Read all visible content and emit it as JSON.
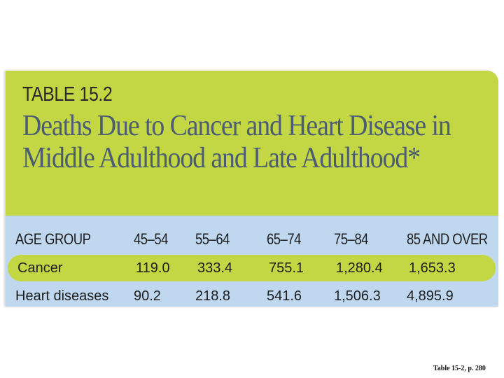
{
  "table": {
    "label": "TABLE 15.2",
    "title": "Deaths Due to Cancer and Heart Disease in Middle Adulthood and Late Adulthood*",
    "columns": [
      "AGE GROUP",
      "45–54",
      "55–64",
      "65–74",
      "75–84",
      "85 AND OVER"
    ],
    "rows": [
      {
        "label": "Cancer",
        "values": [
          "119.0",
          "333.4",
          "755.1",
          "1,280.4",
          "1,653.3"
        ]
      },
      {
        "label": "Heart diseases",
        "values": [
          "90.2",
          "218.8",
          "541.6",
          "1,506.3",
          "4,895.9"
        ]
      }
    ],
    "colors": {
      "header_green": "#c3d744",
      "data_blue": "#bfd8f0",
      "title_slate": "#4c5d72"
    }
  },
  "caption": "Table 15-2, p. 280"
}
